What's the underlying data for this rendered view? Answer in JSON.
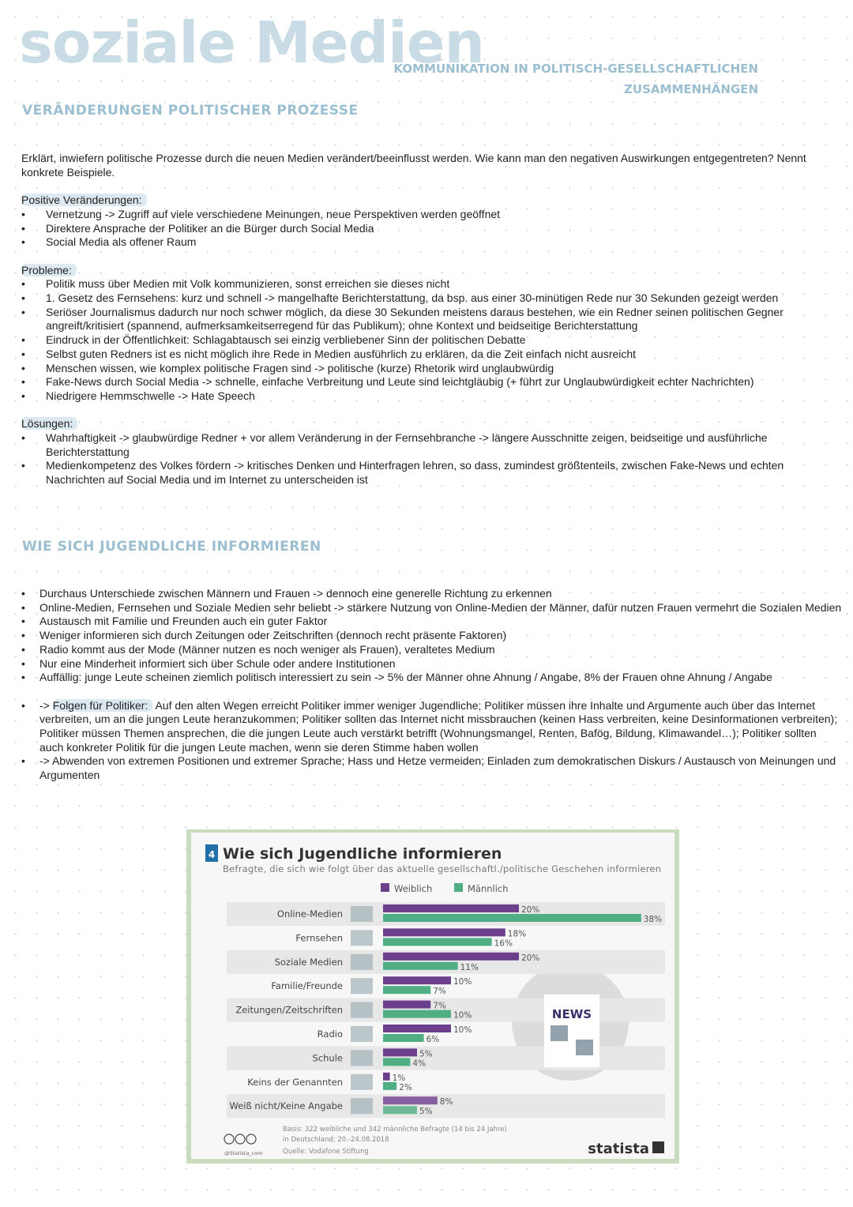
{
  "title": "soziale Medien",
  "subtitle": [
    "Kommunikation in politisch-gesellschaftlichen",
    "Zusammenhängen"
  ],
  "section1": {
    "heading": "Veränderungen politischer Prozesse",
    "question": "Erklärt, inwiefern politische Prozesse durch die neuen Medien verändert/beeinflusst werden. Wie kann man den negativen Auswirkungen entgegentreten? Nennt konkrete Beispiele.",
    "positive_label": "Positive Veränderungen:",
    "positive": [
      "Vernetzung -> Zugriff auf viele verschiedene Meinungen, neue Perspektiven werden geöffnet",
      "Direktere Ansprache der Politiker an die Bürger durch Social Media",
      "Social Media als offener Raum"
    ],
    "problems_label": "Probleme:",
    "problems": [
      "Politik muss über Medien mit Volk kommunizieren, sonst erreichen sie dieses nicht",
      "1. Gesetz des Fernsehens: kurz und schnell -> mangelhafte Berichterstattung, da bsp. aus einer 30-minütigen Rede nur 30 Sekunden gezeigt werden",
      "Seriöser Journalismus dadurch nur noch schwer möglich, da diese 30 Sekunden meistens daraus bestehen, wie ein Redner seinen politischen Gegner angreift/kritisiert (spannend, aufmerksamkeitserregend für das Publikum); ohne Kontext und beidseitige Berichterstattung",
      "Eindruck in der Öffentlichkeit: Schlagabtausch sei einzig verbliebener Sinn der politischen Debatte",
      "Selbst guten Redners ist es nicht möglich ihre Rede in Medien ausführlich zu erklären, da die Zeit einfach nicht ausreicht",
      "Menschen wissen, wie komplex politische Fragen sind -> politische (kurze) Rhetorik wird unglaubwürdig",
      "Fake-News durch Social Media -> schnelle, einfache Verbreitung und Leute sind leichtgläubig (+ führt zur Unglaubwürdigkeit echter Nachrichten)",
      "Niedrigere Hemmschwelle -> Hate Speech"
    ],
    "solutions_label": "Lösungen:",
    "solutions": [
      "Wahrhaftigkeit -> glaubwürdige Redner + vor allem Veränderung in der Fernsehbranche -> längere Ausschnitte zeigen, beidseitige und ausführliche Berichterstattung",
      "Medienkompetenz des Volkes fördern -> kritisches Denken und Hinterfragen lehren, so dass, zumindest größtenteils, zwischen Fake-News und echten Nachrichten auf Social Media und im Internet zu unterscheiden ist"
    ]
  },
  "section2": {
    "heading": "Wie sich Jugendliche informieren",
    "points": [
      "Durchaus Unterschiede zwischen Männern und Frauen -> dennoch eine generelle Richtung zu erkennen",
      "Online-Medien, Fernsehen und Soziale Medien sehr beliebt -> stärkere Nutzung von Online-Medien der Männer, dafür nutzen Frauen vermehrt die Sozialen Medien",
      "Austausch mit Familie und Freunden auch ein guter Faktor",
      "Weniger informieren sich durch Zeitungen oder Zeitschriften (dennoch recht präsente Faktoren)",
      "Radio kommt aus der Mode (Männer nutzen es noch weniger als Frauen), veraltetes Medium",
      "Nur eine Minderheit informiert sich über Schule oder andere Institutionen",
      "Auffällig: junge Leute scheinen ziemlich politisch interessiert zu sein -> 5% der Männer ohne Ahnung / Angabe, 8% der Frauen ohne Ahnung / Angabe"
    ],
    "consequences_prefix": "-> ",
    "consequences_label": "Folgen für Politiker:",
    "consequences": " Auf den alten Wegen erreicht Politiker immer weniger Jugendliche; Politiker müssen ihre Inhalte und Argumente auch über das Internet verbreiten, um an die jungen Leute heranzukommen; Politiker sollten das Internet nicht missbrauchen (keinen Hass verbreiten, keine Desinformationen verbreiten); Politiker müssen Themen ansprechen, die die jungen Leute auch verstärkt betrifft (Wohnungsmangel, Renten, Bafög, Bildung, Klimawandel…); Politiker sollten auch konkreter Politik für die jungen Leute machen, wenn sie deren Stimme haben wollen",
    "last": "-> Abwenden von extremen Positionen und extremer Sprache; Hass und Hetze vermeiden; Einladen zum demokratischen Diskurs / Austausch von Meinungen und Argumenten"
  },
  "chart_data": {
    "type": "bar",
    "orientation": "horizontal",
    "number": "4",
    "title": "Wie sich Jugendliche informieren",
    "subtitle": "Befragte, die sich wie folgt über das aktuelle gesellschaftl./politische Geschehen informieren",
    "legend_position": "top",
    "categories": [
      "Online-Medien",
      "Fernsehen",
      "Soziale Medien",
      "Familie/Freunde",
      "Zeitungen/Zeitschriften",
      "Radio",
      "Schule",
      "Keins der Genannten",
      "Weiß nicht/Keine Angabe"
    ],
    "series": [
      {
        "name": "Weiblich",
        "color": "#6b3f8c",
        "values": [
          20,
          18,
          20,
          10,
          7,
          10,
          5,
          1,
          8
        ]
      },
      {
        "name": "Männlich",
        "color": "#4fae84",
        "values": [
          38,
          16,
          11,
          7,
          10,
          6,
          4,
          2,
          5
        ]
      }
    ],
    "unit": "%",
    "grid": false,
    "news_badge": "NEWS",
    "footer_basis": "Basis: 322 weibliche und 342 männliche Befragte (14 bis 24 Jahre)",
    "footer_region": "in Deutschland; 20.-24.08.2018",
    "footer_source": "Quelle: Vodafone Stiftung",
    "handle": "@Statista_com",
    "brand": "statista"
  }
}
